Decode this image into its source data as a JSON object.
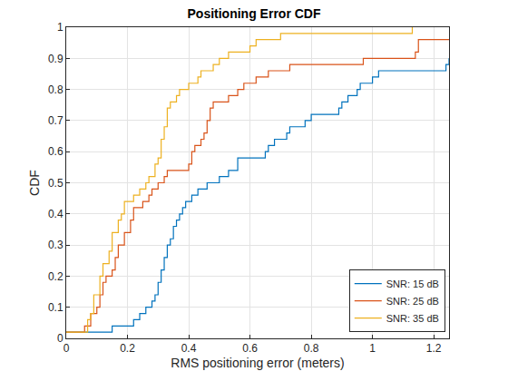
{
  "chart_data": {
    "type": "line",
    "title": "Positioning Error CDF",
    "x_label": "RMS positioning error (meters)",
    "y_label": "CDF",
    "line_style": "step",
    "grid": true,
    "legend": "lower right",
    "xlim": [
      0,
      1.25
    ],
    "ylim": [
      0,
      1
    ],
    "xticks": [
      0,
      0.2,
      0.4,
      0.6,
      0.8,
      1,
      1.2
    ],
    "yticks": [
      0,
      0.1,
      0.2,
      0.3,
      0.4,
      0.5,
      0.6,
      0.7,
      0.8,
      0.9,
      1
    ],
    "series": [
      {
        "name": "SNR: 15 dB",
        "color": "#0072BD",
        "x": [
          0,
          0.15,
          0.22,
          0.24,
          0.26,
          0.28,
          0.29,
          0.3,
          0.31,
          0.32,
          0.33,
          0.34,
          0.35,
          0.36,
          0.37,
          0.38,
          0.39,
          0.41,
          0.43,
          0.46,
          0.5,
          0.53,
          0.56,
          0.65,
          0.66,
          0.68,
          0.72,
          0.73,
          0.78,
          0.8,
          0.89,
          0.9,
          0.92,
          0.95,
          0.96,
          1.0,
          1.02,
          1.24,
          1.25
        ],
        "values": [
          0.02,
          0.04,
          0.06,
          0.08,
          0.1,
          0.12,
          0.14,
          0.18,
          0.22,
          0.26,
          0.3,
          0.32,
          0.36,
          0.38,
          0.4,
          0.42,
          0.44,
          0.46,
          0.48,
          0.5,
          0.52,
          0.54,
          0.58,
          0.6,
          0.62,
          0.64,
          0.66,
          0.68,
          0.7,
          0.72,
          0.74,
          0.76,
          0.78,
          0.8,
          0.82,
          0.84,
          0.86,
          0.88,
          0.9
        ]
      },
      {
        "name": "SNR: 25 dB",
        "color": "#D95319",
        "x": [
          0,
          0.06,
          0.08,
          0.1,
          0.11,
          0.12,
          0.13,
          0.15,
          0.16,
          0.17,
          0.19,
          0.21,
          0.22,
          0.25,
          0.27,
          0.28,
          0.3,
          0.32,
          0.33,
          0.4,
          0.41,
          0.42,
          0.44,
          0.45,
          0.46,
          0.47,
          0.48,
          0.53,
          0.56,
          0.58,
          0.62,
          0.66,
          0.73,
          0.97,
          1.14,
          1.15,
          1.25
        ],
        "values": [
          0.02,
          0.04,
          0.08,
          0.1,
          0.14,
          0.18,
          0.2,
          0.22,
          0.26,
          0.3,
          0.34,
          0.38,
          0.42,
          0.44,
          0.46,
          0.48,
          0.5,
          0.52,
          0.54,
          0.56,
          0.6,
          0.62,
          0.64,
          0.66,
          0.7,
          0.74,
          0.76,
          0.78,
          0.8,
          0.82,
          0.84,
          0.86,
          0.88,
          0.9,
          0.92,
          0.96,
          0.96
        ]
      },
      {
        "name": "SNR: 35 dB",
        "color": "#EDB120",
        "x": [
          0,
          0.07,
          0.08,
          0.09,
          0.11,
          0.12,
          0.14,
          0.15,
          0.17,
          0.18,
          0.19,
          0.22,
          0.24,
          0.26,
          0.27,
          0.29,
          0.3,
          0.31,
          0.32,
          0.33,
          0.34,
          0.36,
          0.37,
          0.4,
          0.43,
          0.44,
          0.48,
          0.5,
          0.53,
          0.6,
          0.62,
          0.7,
          1.13
        ],
        "values": [
          0.02,
          0.06,
          0.08,
          0.14,
          0.2,
          0.24,
          0.28,
          0.34,
          0.38,
          0.4,
          0.44,
          0.46,
          0.48,
          0.5,
          0.52,
          0.56,
          0.58,
          0.64,
          0.68,
          0.74,
          0.76,
          0.78,
          0.8,
          0.82,
          0.84,
          0.86,
          0.88,
          0.9,
          0.92,
          0.94,
          0.96,
          0.98,
          1.0
        ]
      }
    ]
  }
}
